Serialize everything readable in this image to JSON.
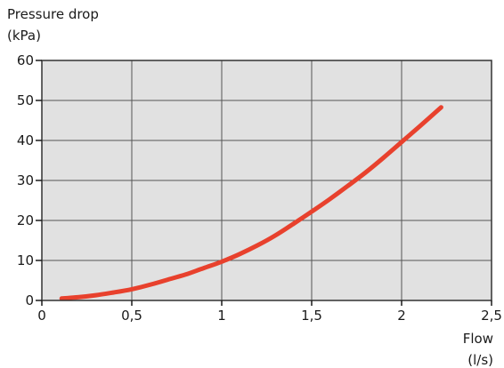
{
  "chart_data": {
    "type": "line",
    "ylabel_line1": "Pressure drop",
    "ylabel_line2": "(kPa)",
    "xlabel_line1": "Flow",
    "xlabel_line2": "(l/s)",
    "xlim": [
      0,
      2.5
    ],
    "ylim": [
      0,
      60
    ],
    "x_ticks": [
      0,
      0.5,
      1,
      1.5,
      2,
      2.5
    ],
    "x_tick_labels": [
      "0",
      "0,5",
      "1",
      "1,5",
      "2",
      "2,5"
    ],
    "y_ticks": [
      0,
      10,
      20,
      30,
      40,
      50,
      60
    ],
    "y_tick_labels": [
      "0",
      "10",
      "20",
      "30",
      "40",
      "50",
      "60"
    ],
    "grid": true,
    "plot_background": "#e1e1e1",
    "grid_color": "#555555",
    "series": [
      {
        "color": "#e8412d",
        "x": [
          0.11,
          0.2,
          0.3,
          0.4,
          0.5,
          0.6,
          0.7,
          0.8,
          0.9,
          1.0,
          1.1,
          1.2,
          1.3,
          1.4,
          1.5,
          1.6,
          1.7,
          1.8,
          1.9,
          2.0,
          2.1,
          2.22
        ],
        "y": [
          0.5,
          0.8,
          1.3,
          2.0,
          2.8,
          3.9,
          5.2,
          6.5,
          8.1,
          9.7,
          11.6,
          13.8,
          16.3,
          19.2,
          22.2,
          25.3,
          28.6,
          32.0,
          35.7,
          39.6,
          43.5,
          48.3
        ]
      }
    ]
  }
}
